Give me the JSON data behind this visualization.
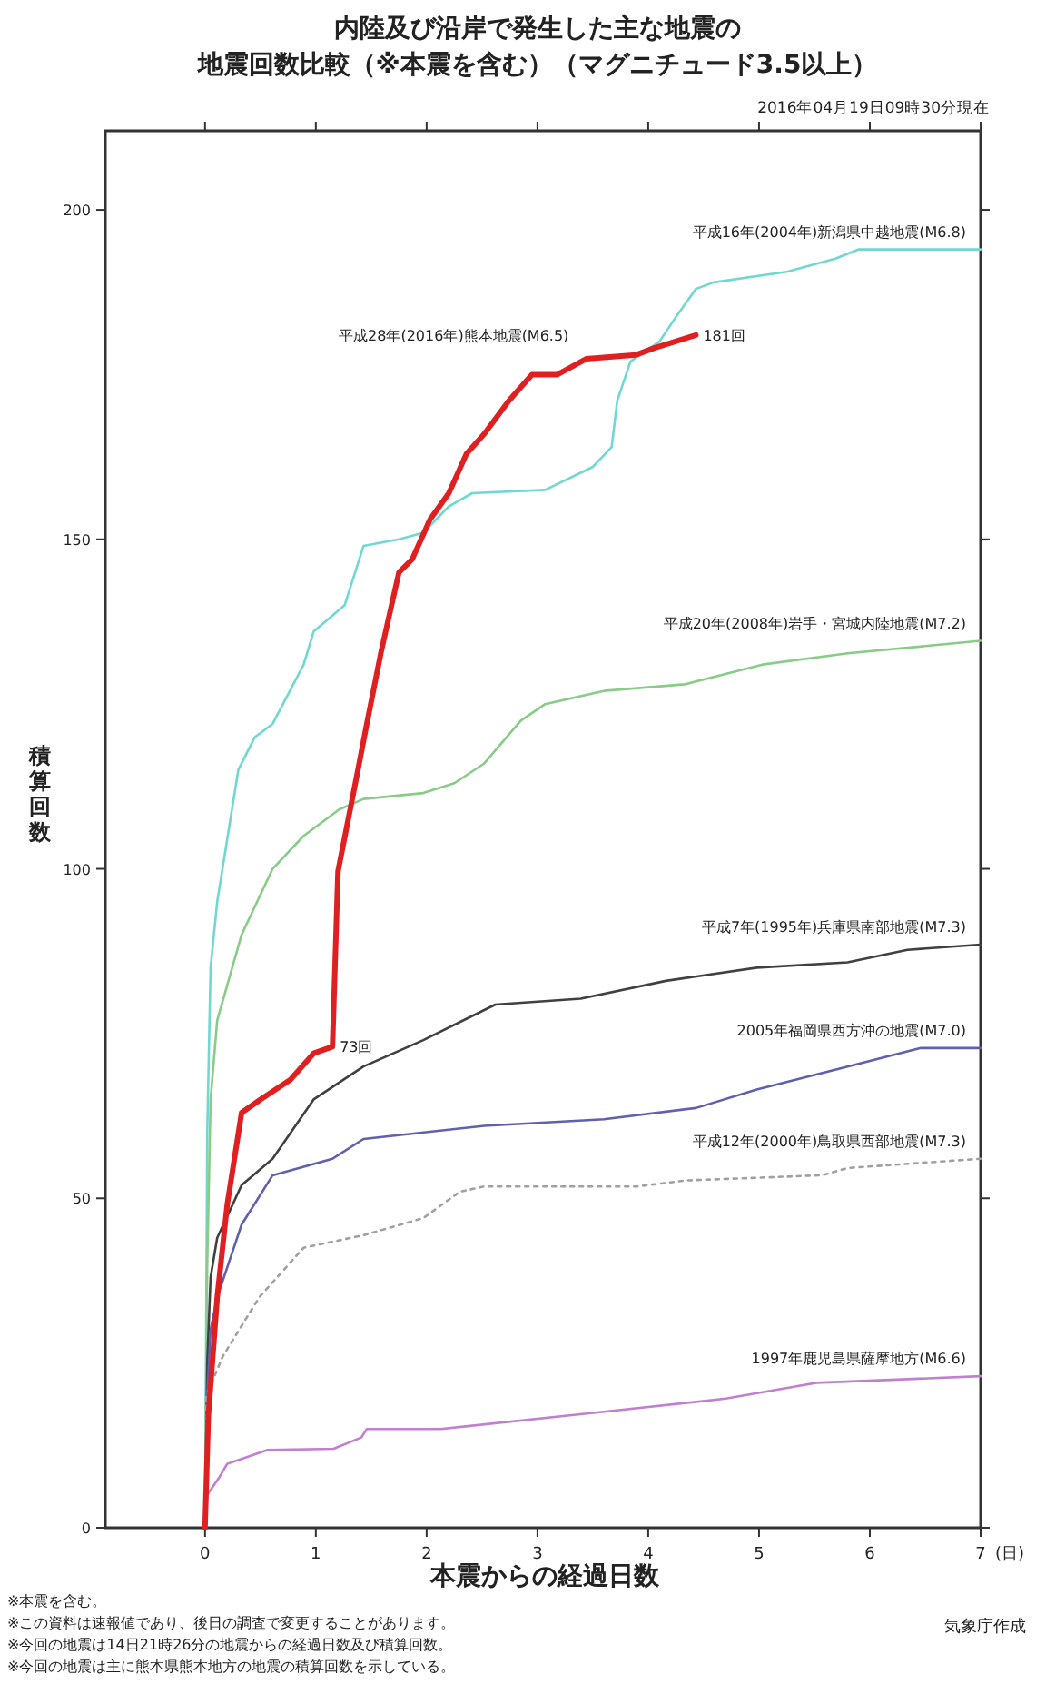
{
  "chart_data": {
    "type": "line",
    "title": "内陸及び沿岸で発生した主な地震の",
    "subtitle": "地震回数比較（※本震を含む）（マグニチュード3.5以上）",
    "xlabel": "本震からの経過日数",
    "ylabel": "積算回数",
    "xlim": [
      -0.9,
      7
    ],
    "xticks": [
      0,
      1,
      2,
      3,
      4,
      5,
      6,
      7
    ],
    "ylim": [
      0,
      212
    ],
    "yticks": [
      0,
      50,
      100,
      150,
      200
    ],
    "grid": false,
    "annotations": [
      "2016年04月19日09時30分現在",
      "(日)",
      "※本震を含む。",
      "※この資料は速報値であり、後日の調査で変更することがあります。",
      "※今回の地震は14日21時26分の地震からの経過日数及び積算回数。",
      "※今回の地震は主に熊本県熊本地方の地震の積算回数を示している。",
      "気象庁作成",
      {
        "text": "73回",
        "x": 1.15,
        "y": 73
      },
      {
        "text": "181回",
        "x": 4.43,
        "y": 181
      }
    ],
    "series": [
      {
        "name": "平成16年(2004年)新潟県中越地震(M6.8)",
        "color": "#70d8d0",
        "x": [
          0,
          0.02,
          0.05,
          0.11,
          0.3,
          0.45,
          0.61,
          0.89,
          0.98,
          1.26,
          1.43,
          1.75,
          1.97,
          2.2,
          2.41,
          3.07,
          3.5,
          3.67,
          3.72,
          3.84,
          4.1,
          4.26,
          4.43,
          4.59,
          5.25,
          5.69,
          5.9,
          7
        ],
        "values": [
          0,
          60,
          85,
          95,
          115,
          120,
          122,
          131,
          136,
          140,
          149,
          150,
          151,
          155,
          157,
          157.5,
          161,
          164,
          171,
          177,
          180,
          184,
          188,
          189,
          190.6,
          192.6,
          194,
          194
        ]
      },
      {
        "name": "平成20年(2008年)岩手・宮城内陸地震(M7.2)",
        "color": "#88cc88",
        "x": [
          0,
          0.02,
          0.05,
          0.11,
          0.33,
          0.61,
          0.89,
          1.21,
          1.43,
          1.97,
          2.25,
          2.52,
          2.85,
          3.07,
          3.6,
          4.33,
          5.03,
          5.8,
          7
        ],
        "values": [
          0,
          40,
          65,
          77,
          90,
          100,
          105,
          109,
          110.6,
          111.5,
          113,
          116,
          122.5,
          125,
          127,
          128,
          131,
          132.7,
          134.6
        ]
      },
      {
        "name": "平成7年(1995年)兵庫県南部地震(M7.3)",
        "color": "#404040",
        "x": [
          0,
          0.02,
          0.05,
          0.11,
          0.33,
          0.61,
          0.98,
          1.43,
          1.97,
          2.62,
          3.39,
          4.16,
          4.98,
          5.8,
          6.34,
          7
        ],
        "values": [
          0,
          25,
          38,
          44,
          52,
          56,
          65,
          70,
          74,
          79.4,
          80.3,
          83,
          85,
          85.8,
          87.7,
          88.5
        ]
      },
      {
        "name": "2005年福岡県西方沖の地震(M7.0)",
        "color": "#6060b0",
        "x": [
          0,
          0.02,
          0.05,
          0.11,
          0.33,
          0.61,
          1.15,
          1.43,
          2.52,
          3.6,
          4.43,
          4.98,
          5.8,
          6.46,
          7
        ],
        "values": [
          0,
          20,
          30,
          35,
          46,
          53.5,
          56,
          59,
          61,
          62,
          63.7,
          66.5,
          70,
          72.8,
          72.8
        ]
      },
      {
        "name": "平成12年(2000年)鳥取県西部地震(M7.3)",
        "color": "#a0a0a0",
        "line_style": "dotted",
        "x": [
          0,
          0.01,
          0.16,
          0.49,
          0.89,
          1.43,
          1.97,
          2.3,
          2.52,
          3.9,
          4.33,
          5.57,
          5.8,
          7
        ],
        "values": [
          0,
          20,
          26,
          35,
          42.5,
          44.4,
          47,
          51,
          51.8,
          51.8,
          52.7,
          53.5,
          54.6,
          56
        ]
      },
      {
        "name": "1997年鹿児島県薩摩地方(M6.6)",
        "color": "#c080d0",
        "x": [
          0,
          0.02,
          0.13,
          0.2,
          0.56,
          1.16,
          1.41,
          1.46,
          2.13,
          3.6,
          4.7,
          5.52,
          7
        ],
        "values": [
          0,
          5,
          7.7,
          9.7,
          11.8,
          12,
          13.7,
          15,
          15,
          17.6,
          19.6,
          22,
          23
        ]
      },
      {
        "name": "平成28年(2016年)熊本地震(M6.5)",
        "color": "#e02020",
        "x": [
          0,
          0.03,
          0.11,
          0.2,
          0.33,
          0.5,
          0.77,
          0.98,
          1.15,
          1.2,
          1.38,
          1.46,
          1.59,
          1.75,
          1.87,
          2.03,
          2.2,
          2.36,
          2.52,
          2.74,
          2.95,
          3.18,
          3.44,
          3.89,
          4.05,
          4.43
        ],
        "values": [
          0,
          17,
          35,
          49,
          63,
          65,
          68,
          72,
          73,
          99.6,
          115,
          122,
          133,
          145,
          147,
          153,
          157,
          163,
          166,
          171,
          175,
          175,
          177.4,
          178,
          179,
          181
        ]
      }
    ]
  }
}
